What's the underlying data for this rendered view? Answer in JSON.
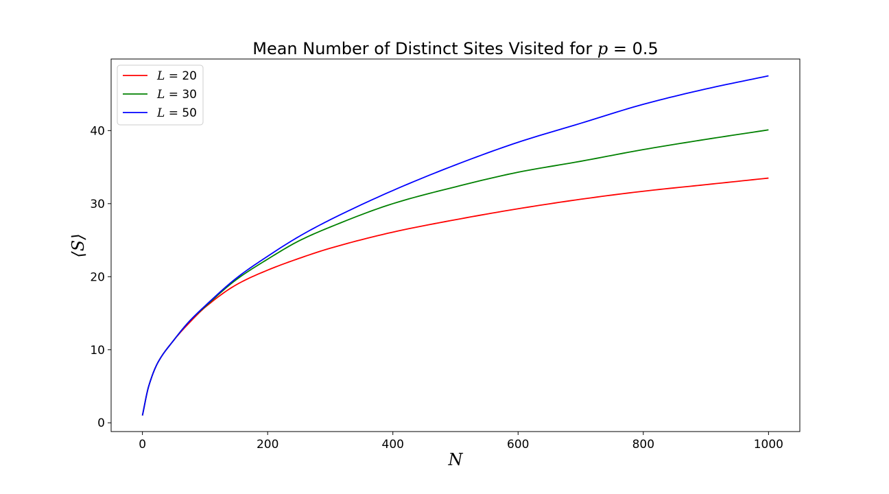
{
  "chart_data": {
    "type": "line",
    "title": "Mean Number of Distinct Sites Visited for p = 0.5",
    "title_parts": {
      "prefix": "Mean Number of Distinct Sites Visited for ",
      "var": "p",
      "suffix": " = 0.5"
    },
    "xlabel": "N",
    "ylabel": "⟨S⟩",
    "xlim": [
      -50,
      1050
    ],
    "ylim": [
      -1.2,
      49.8
    ],
    "xticks": [
      0,
      200,
      400,
      600,
      800,
      1000
    ],
    "yticks": [
      0,
      10,
      20,
      30,
      40
    ],
    "grid": false,
    "legend_position": "upper-left",
    "series": [
      {
        "name": "L = 20",
        "name_var": "L",
        "name_rest": " = 20",
        "color": "#ff0000",
        "x": [
          0,
          10,
          25,
          50,
          75,
          100,
          150,
          200,
          250,
          300,
          400,
          500,
          600,
          700,
          800,
          900,
          1000
        ],
        "y": [
          1,
          5,
          8.3,
          11.3,
          13.7,
          15.8,
          18.9,
          20.9,
          22.5,
          23.9,
          26.1,
          27.8,
          29.3,
          30.6,
          31.7,
          32.6,
          33.5
        ]
      },
      {
        "name": "L = 30",
        "name_var": "L",
        "name_rest": " = 30",
        "color": "#008000",
        "x": [
          0,
          10,
          25,
          50,
          75,
          100,
          150,
          200,
          250,
          300,
          400,
          500,
          600,
          700,
          800,
          900,
          1000
        ],
        "y": [
          1,
          5,
          8.3,
          11.3,
          13.9,
          15.9,
          19.6,
          22.4,
          24.9,
          26.8,
          30.0,
          32.3,
          34.3,
          35.8,
          37.4,
          38.8,
          40.1
        ]
      },
      {
        "name": "L = 50",
        "name_var": "L",
        "name_rest": " = 50",
        "color": "#0000ff",
        "x": [
          0,
          10,
          25,
          50,
          75,
          100,
          150,
          200,
          250,
          300,
          400,
          500,
          600,
          700,
          800,
          900,
          1000
        ],
        "y": [
          1,
          5,
          8.3,
          11.3,
          13.9,
          16.0,
          19.8,
          22.8,
          25.5,
          27.8,
          31.8,
          35.3,
          38.4,
          41.0,
          43.6,
          45.7,
          47.5
        ]
      }
    ]
  }
}
